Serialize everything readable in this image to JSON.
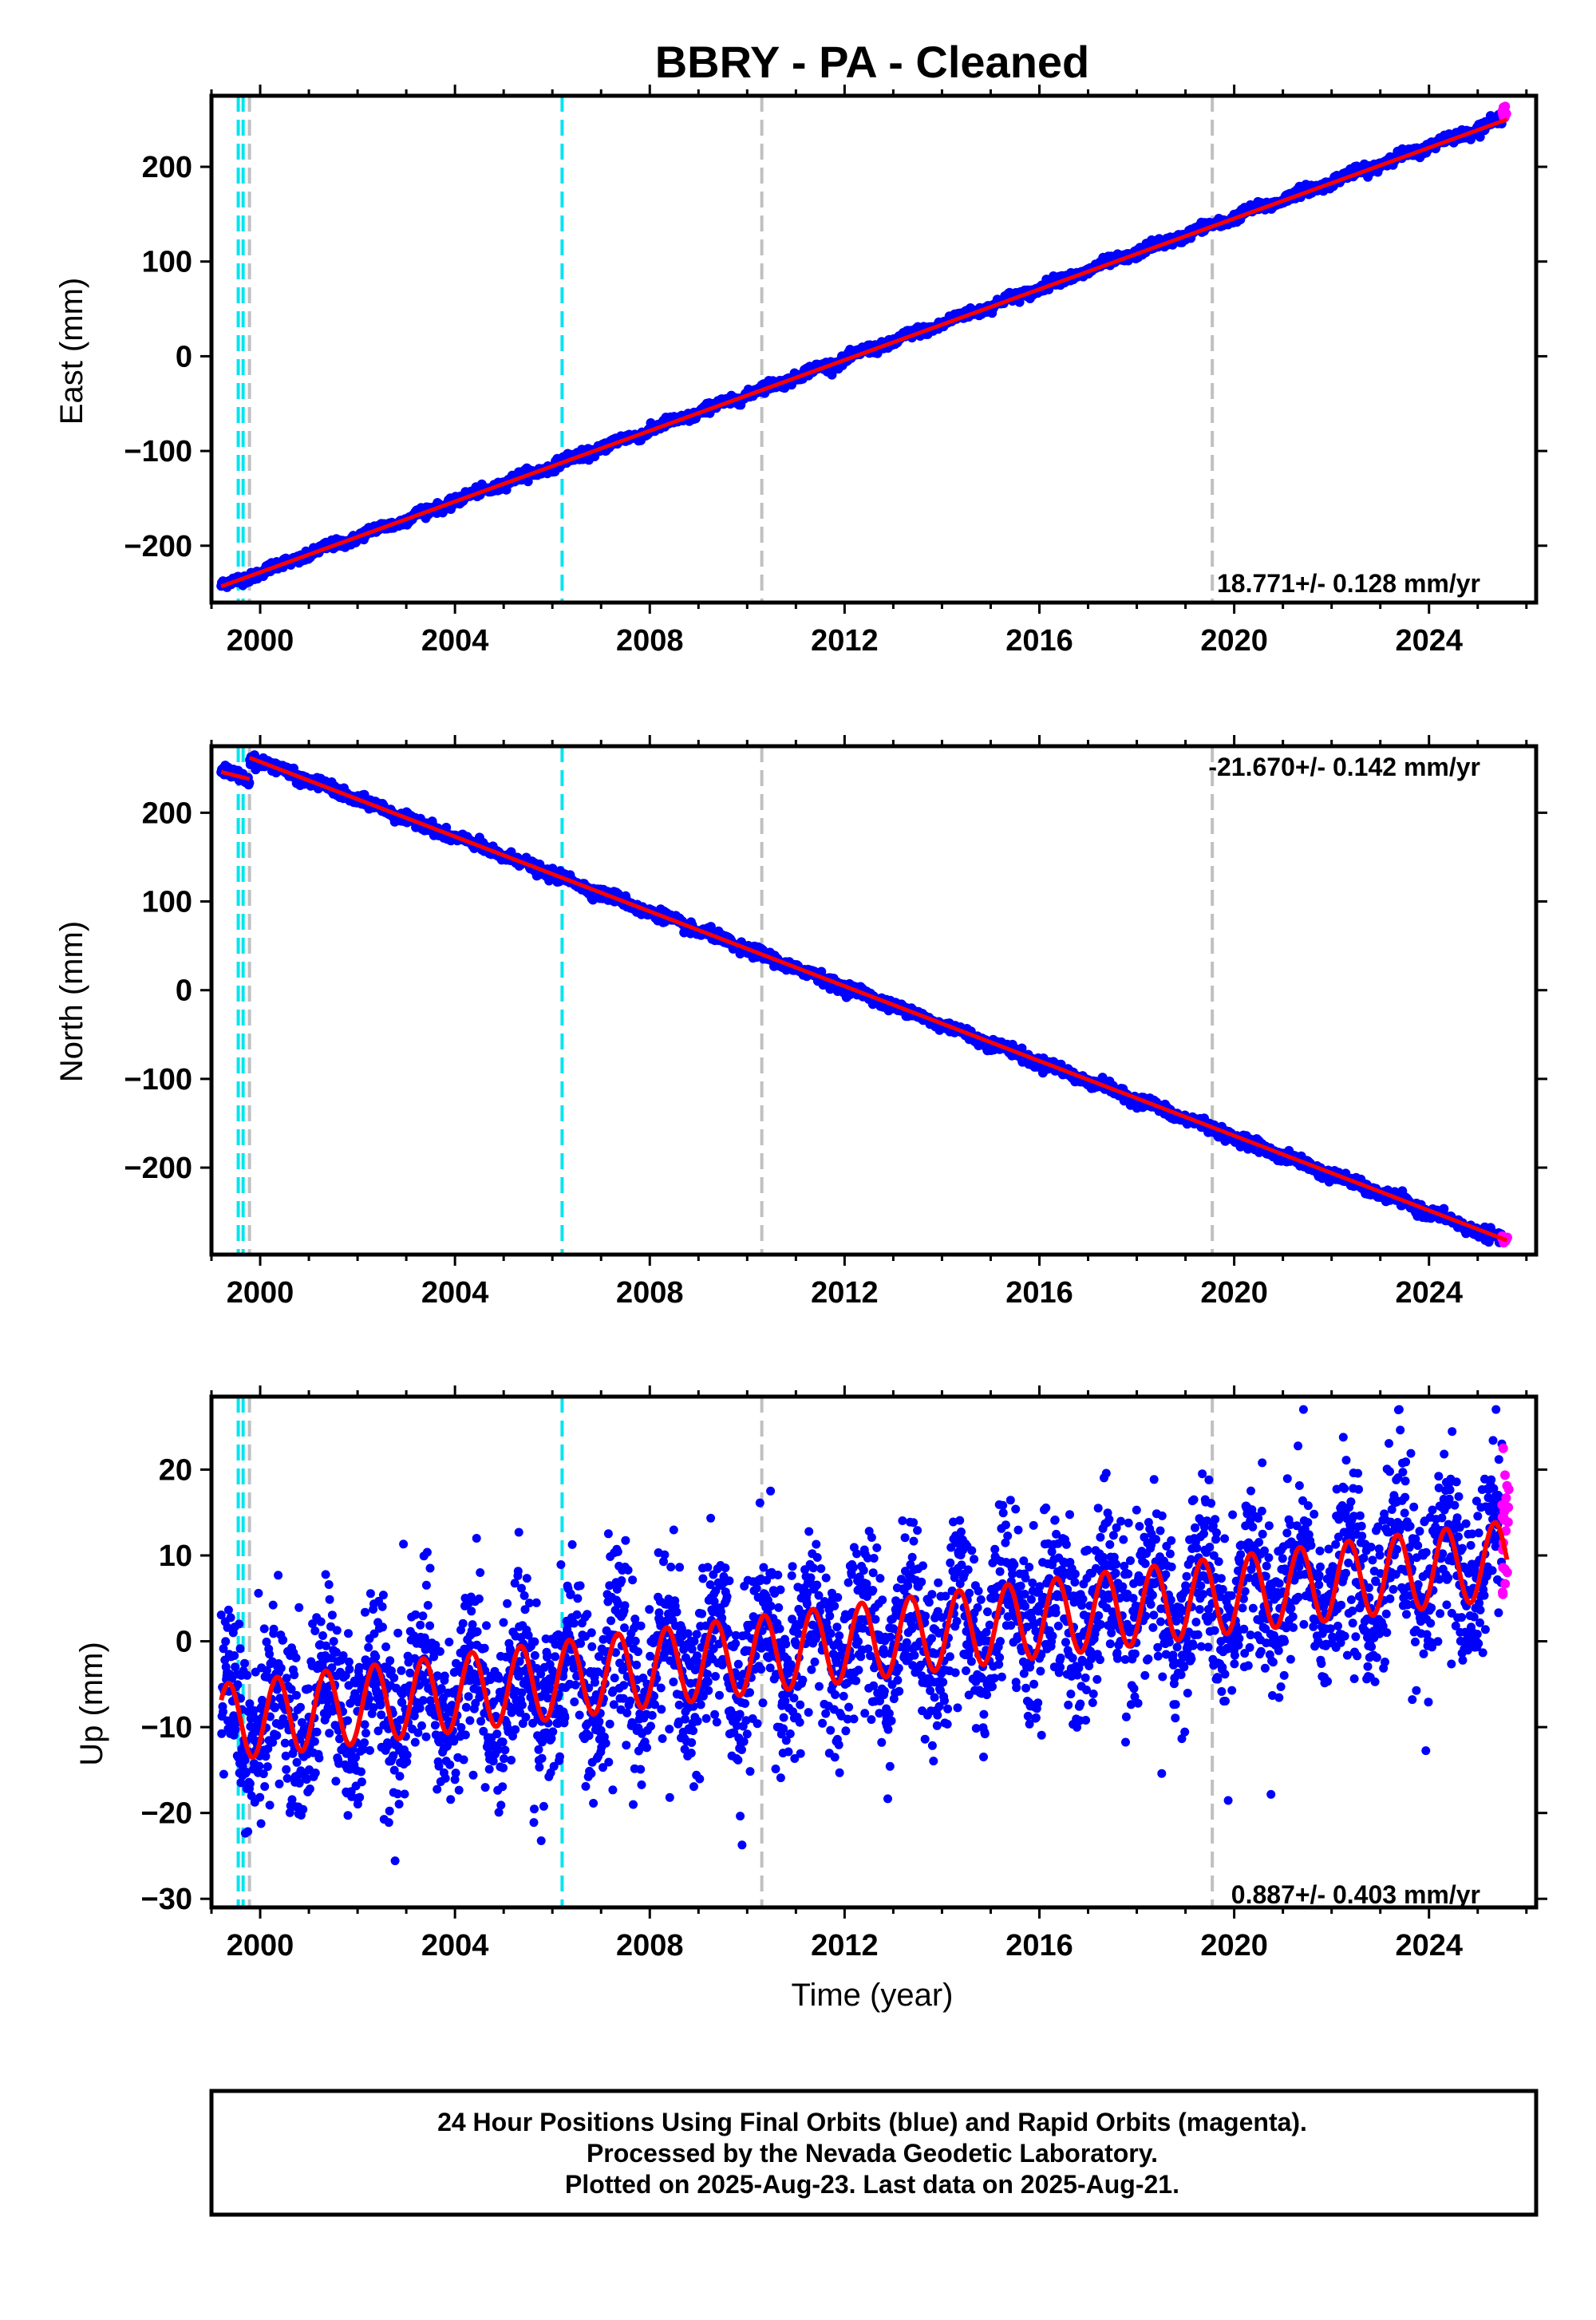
{
  "title": "BBRY  - PA - Cleaned",
  "colors": {
    "final_orbits": "#0000ff",
    "rapid_orbits": "#ff00ff",
    "model_fit": "#ff0000",
    "equipment_change": "#00e5ee",
    "earthquake_marker": "#c0c0c0",
    "axis": "#000000"
  },
  "x_axis": {
    "label": "Time (year)",
    "range": [
      1999.0,
      2026.2
    ],
    "ticks": [
      2000,
      2004,
      2008,
      2012,
      2016,
      2020,
      2024
    ],
    "tick_labels": [
      "2000",
      "2004",
      "2008",
      "2012",
      "2016",
      "2020",
      "2024"
    ]
  },
  "event_lines": {
    "cyan_dashed": [
      1999.55,
      1999.65,
      2006.2
    ],
    "gray_dashed": [
      1999.78,
      2010.3,
      2019.55
    ]
  },
  "footer": {
    "line1": "24 Hour Positions Using Final Orbits (blue) and Rapid Orbits (magenta).",
    "line2": "Processed by the Nevada Geodetic Laboratory.",
    "line3": "Plotted on 2025-Aug-23. Last data on 2025-Aug-21."
  },
  "chart_data": [
    {
      "type": "scatter",
      "component": "East",
      "ylabel": "East (mm)",
      "ylim": [
        -260,
        275
      ],
      "yticks": [
        -200,
        -100,
        0,
        100,
        200
      ],
      "ytick_labels": [
        "−200",
        "−100",
        "0",
        "100",
        "200"
      ],
      "rate_text": "18.771+/- 0.128 mm/yr",
      "rate_mm_per_yr": 18.771,
      "rate_uncertainty": 0.128,
      "rate_position": "bottom-right",
      "series": [
        {
          "name": "Final Orbits",
          "x_range": [
            1999.2,
            2025.5
          ],
          "trend": {
            "x": [
              1999.2,
              2025.5
            ],
            "y": [
              -243,
              250
            ]
          },
          "scatter_mm": 2.5,
          "seasonal_amp_mm": 2
        },
        {
          "name": "Rapid Orbits",
          "x_range": [
            2025.5,
            2025.64
          ],
          "y_range": [
            248,
            266
          ]
        },
        {
          "name": "Model",
          "x": [
            1999.2,
            2025.6
          ],
          "y": [
            -243,
            250
          ]
        }
      ]
    },
    {
      "type": "scatter",
      "component": "North",
      "ylabel": "North (mm)",
      "ylim": [
        -298,
        275
      ],
      "yticks": [
        -200,
        -100,
        0,
        100,
        200
      ],
      "ytick_labels": [
        "−200",
        "−100",
        "0",
        "100",
        "200"
      ],
      "rate_text": "-21.670+/- 0.142 mm/yr",
      "rate_mm_per_yr": -21.67,
      "rate_uncertainty": 0.142,
      "rate_position": "top-right",
      "series": [
        {
          "name": "Final Orbits",
          "x_range": [
            1999.2,
            2025.5
          ],
          "segments": [
            {
              "x": [
                1999.2,
                1999.78
              ],
              "y": [
                246,
                238
              ]
            },
            {
              "x": [
                1999.78,
                2025.5
              ],
              "y": [
                262,
                -282
              ]
            }
          ],
          "scatter_mm": 3,
          "seasonal_amp_mm": 2
        },
        {
          "name": "Rapid Orbits",
          "x_range": [
            2025.5,
            2025.64
          ],
          "y_range": [
            -285,
            -277
          ]
        },
        {
          "name": "Model",
          "segments": [
            {
              "x": [
                1999.2,
                1999.78
              ],
              "y": [
                246,
                238
              ]
            },
            {
              "x": [
                1999.78,
                2025.6
              ],
              "y": [
                262,
                -282
              ]
            }
          ]
        }
      ]
    },
    {
      "type": "scatter",
      "component": "Up",
      "ylabel": "Up (mm)",
      "ylim": [
        -31,
        28.5
      ],
      "yticks": [
        -30,
        -20,
        -10,
        0,
        10,
        20
      ],
      "ytick_labels": [
        "−30",
        "−20",
        "−10",
        "0",
        "10",
        "20"
      ],
      "rate_text": "0.887+/- 0.403 mm/yr",
      "rate_mm_per_yr": 0.887,
      "rate_uncertainty": 0.403,
      "rate_position": "bottom-right",
      "series": [
        {
          "name": "Final Orbits",
          "x_range": [
            1999.2,
            2025.5
          ],
          "trend": {
            "x": [
              1999.2,
              2025.5
            ],
            "y": [
              -9.5,
              9.5
            ]
          },
          "scatter_mm": 5,
          "seasonal_amp_mm": 4.5,
          "y_range": [
            -30,
            27
          ]
        },
        {
          "name": "Rapid Orbits",
          "x_range": [
            2025.5,
            2025.64
          ],
          "y_range": [
            4,
            25
          ]
        },
        {
          "name": "Model",
          "x_range": [
            1999.2,
            2025.6
          ],
          "trend": {
            "x": [
              1999.2,
              2025.6
            ],
            "y": [
              -9.5,
              9.5
            ]
          },
          "seasonal_amp_mm": 4.5
        }
      ]
    }
  ]
}
